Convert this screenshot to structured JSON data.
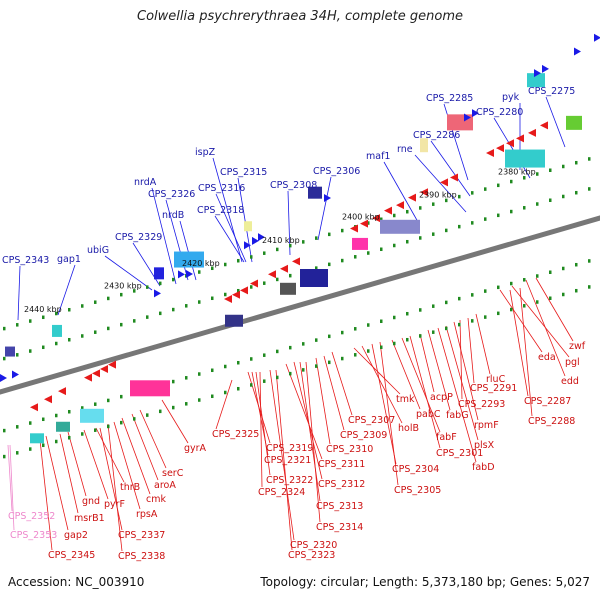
{
  "title": "Colwellia psychrerythraea 34H, complete genome",
  "footer": {
    "accession": "Accession: NC_003910",
    "summary": "Topology: circular; Length: 5,373,180 bp; Genes: 5,027"
  },
  "colors": {
    "forward_gene": "#1a1ae6",
    "reverse_gene": "#e61a1a",
    "pseudo": "#ee88cc",
    "backbone": "#777777",
    "tick": "#1f8a1f"
  },
  "ticks": [
    "2440 kbp",
    "2430 kbp",
    "2420 kbp",
    "2410 kbp",
    "2400 kbp",
    "2390 kbp",
    "2380 kbp"
  ],
  "top_labels": [
    "CPS_2343",
    "gap1",
    "ubiG",
    "CPS_2329",
    "nrdA",
    "CPS_2326",
    "nrdB",
    "ispZ",
    "CPS_2316",
    "CPS_2318",
    "CPS_2315",
    "CPS_2308",
    "CPS_2306",
    "maf1",
    "rne",
    "CPS_2286",
    "CPS_2285",
    "CPS_2280",
    "pyk",
    "CPS_2275"
  ],
  "bottom_labels": [
    "CPS_2352",
    "CPS_2353",
    "CPS_2345",
    "gap2",
    "msrB1",
    "gnd",
    "pyrF",
    "thrB",
    "CPS_2337",
    "CPS_2338",
    "rpsA",
    "cmk",
    "aroA",
    "serC",
    "gyrA",
    "CPS_2325",
    "CPS_2319",
    "CPS_2321",
    "CPS_2322",
    "CPS_2324",
    "CPS_2320",
    "CPS_2323",
    "CPS_2311",
    "CPS_2312",
    "CPS_2313",
    "CPS_2314",
    "CPS_2310",
    "CPS_2309",
    "CPS_2307",
    "tmk",
    "holB",
    "CPS_2304",
    "CPS_2305",
    "pabC",
    "fabF",
    "CPS_2301",
    "acpP",
    "fabG",
    "fabD",
    "plsX",
    "rpmF",
    "CPS_2293",
    "CPS_2291",
    "rluC",
    "eda",
    "pgl",
    "edd",
    "zwf",
    "CPS_2287",
    "CPS_2288"
  ]
}
